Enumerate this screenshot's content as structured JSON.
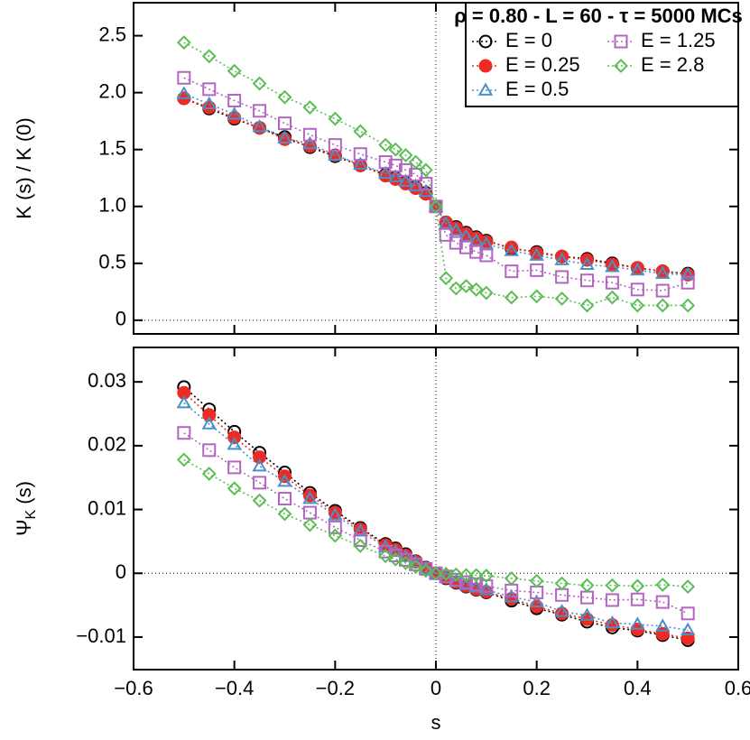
{
  "chart_data": [
    {
      "type": "line",
      "ylabel": "K (s) / K (0)",
      "legend_title": "ρ = 0.80 - L = 60 - τ = 5000 MCs",
      "legend": "upper right",
      "x": [
        -0.5,
        -0.45,
        -0.4,
        -0.35,
        -0.3,
        -0.25,
        -0.2,
        -0.15,
        -0.1,
        -0.08,
        -0.06,
        -0.04,
        -0.02,
        0,
        0.02,
        0.04,
        0.06,
        0.08,
        0.1,
        0.15,
        0.2,
        0.25,
        0.3,
        0.35,
        0.4,
        0.45,
        0.5
      ],
      "xlim": [
        -0.6,
        0.6
      ],
      "ylim": [
        -0.12,
        2.79
      ],
      "yticks": [
        0,
        0.5,
        {
          "value": 1,
          "label": "1.0"
        },
        1.5,
        {
          "value": 2,
          "label": "2.0"
        },
        2.5
      ],
      "series": [
        {
          "name": "E = 0",
          "color": "#000000",
          "marker": "circle",
          "filled": false,
          "values": [
            1.95,
            1.86,
            1.77,
            1.69,
            1.61,
            1.52,
            1.44,
            1.36,
            1.28,
            1.25,
            1.21,
            1.17,
            1.12,
            1.0,
            0.86,
            0.82,
            0.77,
            0.73,
            0.7,
            0.63,
            0.6,
            0.56,
            0.54,
            0.5,
            0.46,
            0.43,
            0.41
          ]
        },
        {
          "name": "E = 0.25",
          "color": "#ee2a24",
          "marker": "circle",
          "filled": true,
          "values": [
            1.95,
            1.87,
            1.78,
            1.69,
            1.59,
            1.53,
            1.45,
            1.36,
            1.27,
            1.24,
            1.2,
            1.16,
            1.11,
            1.0,
            0.86,
            0.81,
            0.76,
            0.72,
            0.69,
            0.64,
            0.59,
            0.56,
            0.53,
            0.49,
            0.46,
            0.43,
            0.4
          ]
        },
        {
          "name": "E = 0.5",
          "color": "#4a90c8",
          "marker": "triangle",
          "filled": false,
          "values": [
            1.99,
            1.9,
            1.81,
            1.7,
            1.6,
            1.55,
            1.45,
            1.37,
            1.29,
            1.26,
            1.22,
            1.18,
            1.13,
            1.0,
            0.85,
            0.79,
            0.74,
            0.7,
            0.67,
            0.61,
            0.57,
            0.53,
            0.49,
            0.47,
            0.44,
            0.41,
            0.4
          ]
        },
        {
          "name": "E = 1.25",
          "color": "#b266c2",
          "marker": "square",
          "filled": false,
          "values": [
            2.13,
            2.03,
            1.93,
            1.84,
            1.73,
            1.63,
            1.54,
            1.46,
            1.39,
            1.36,
            1.32,
            1.28,
            1.2,
            1.0,
            0.75,
            0.68,
            0.64,
            0.6,
            0.57,
            0.43,
            0.44,
            0.38,
            0.35,
            0.33,
            0.27,
            0.26,
            0.33
          ]
        },
        {
          "name": "E = 2.8",
          "color": "#5cbd56",
          "marker": "diamond",
          "filled": false,
          "values": [
            2.44,
            2.32,
            2.19,
            2.08,
            1.96,
            1.87,
            1.77,
            1.66,
            1.54,
            1.5,
            1.45,
            1.39,
            1.32,
            1.0,
            0.37,
            0.28,
            0.3,
            0.27,
            0.24,
            0.2,
            0.21,
            0.19,
            0.13,
            0.2,
            0.13,
            0.13,
            0.13
          ]
        }
      ]
    },
    {
      "type": "line",
      "ylabel": {
        "main": "Ψ",
        "sub": "K",
        "rest": " (s)"
      },
      "xlabel": "s",
      "x": [
        -0.5,
        -0.45,
        -0.4,
        -0.35,
        -0.3,
        -0.25,
        -0.2,
        -0.15,
        -0.1,
        -0.08,
        -0.06,
        -0.04,
        -0.02,
        0,
        0.02,
        0.04,
        0.06,
        0.08,
        0.1,
        0.15,
        0.2,
        0.25,
        0.3,
        0.35,
        0.4,
        0.45,
        0.5
      ],
      "xlim": [
        -0.6,
        0.6
      ],
      "xticks": [
        {
          "value": -0.6,
          "label": "−0.6"
        },
        {
          "value": -0.4,
          "label": "−0.4"
        },
        {
          "value": -0.2,
          "label": "−0.2"
        },
        0,
        0.2,
        0.4,
        0.6
      ],
      "ylim": [
        -0.0151,
        0.0354
      ],
      "yticks": [
        {
          "value": -0.01,
          "label": "−0.01"
        },
        0,
        0.01,
        0.02,
        0.03
      ],
      "series": [
        {
          "color": "#000000",
          "marker": "circle",
          "filled": false,
          "values": [
            0.0292,
            0.0257,
            0.0222,
            0.0189,
            0.0158,
            0.0126,
            0.0098,
            0.0071,
            0.0046,
            0.0039,
            0.003,
            0.0019,
            0.0009,
            0,
            -0.0008,
            -0.0015,
            -0.0021,
            -0.0026,
            -0.003,
            -0.0043,
            -0.0055,
            -0.0065,
            -0.0076,
            -0.0085,
            -0.009,
            -0.0097,
            -0.0105
          ]
        },
        {
          "color": "#ee2a24",
          "marker": "circle",
          "filled": true,
          "values": [
            0.0283,
            0.0248,
            0.0213,
            0.0182,
            0.0152,
            0.0122,
            0.0095,
            0.0069,
            0.0044,
            0.0037,
            0.0028,
            0.0018,
            0.0008,
            0,
            -0.0007,
            -0.0014,
            -0.002,
            -0.0025,
            -0.0029,
            -0.004,
            -0.0052,
            -0.0063,
            -0.0072,
            -0.0081,
            -0.0088,
            -0.0095,
            -0.0102
          ]
        },
        {
          "color": "#4a90c8",
          "marker": "triangle",
          "filled": false,
          "values": [
            0.0267,
            0.0234,
            0.0202,
            0.0168,
            0.0144,
            0.0117,
            0.0091,
            0.0066,
            0.0041,
            0.0034,
            0.0026,
            0.0017,
            0.0008,
            0,
            -0.0007,
            -0.0013,
            -0.0018,
            -0.0022,
            -0.0026,
            -0.0037,
            -0.0045,
            -0.006,
            -0.0066,
            -0.0078,
            -0.008,
            -0.0083,
            -0.0089
          ]
        },
        {
          "color": "#b266c2",
          "marker": "square",
          "filled": false,
          "values": [
            0.022,
            0.0193,
            0.0166,
            0.0142,
            0.0117,
            0.0095,
            0.0072,
            0.0052,
            0.0034,
            0.0028,
            0.0021,
            0.0014,
            0.0007,
            0,
            -0.0005,
            -0.001,
            -0.0014,
            -0.0017,
            -0.002,
            -0.0027,
            -0.003,
            -0.0034,
            -0.0038,
            -0.0042,
            -0.0041,
            -0.0045,
            -0.0063
          ]
        },
        {
          "color": "#5cbd56",
          "marker": "diamond",
          "filled": false,
          "values": [
            0.0178,
            0.0156,
            0.0133,
            0.0114,
            0.0093,
            0.0076,
            0.0059,
            0.0043,
            0.0027,
            0.0022,
            0.0016,
            0.001,
            0.0004,
            0,
            -0.0001,
            -0.0002,
            -0.0003,
            -0.0003,
            -0.0004,
            -0.0008,
            -0.0012,
            -0.0016,
            -0.0019,
            -0.0019,
            -0.002,
            -0.0018,
            -0.0021
          ]
        }
      ]
    }
  ]
}
